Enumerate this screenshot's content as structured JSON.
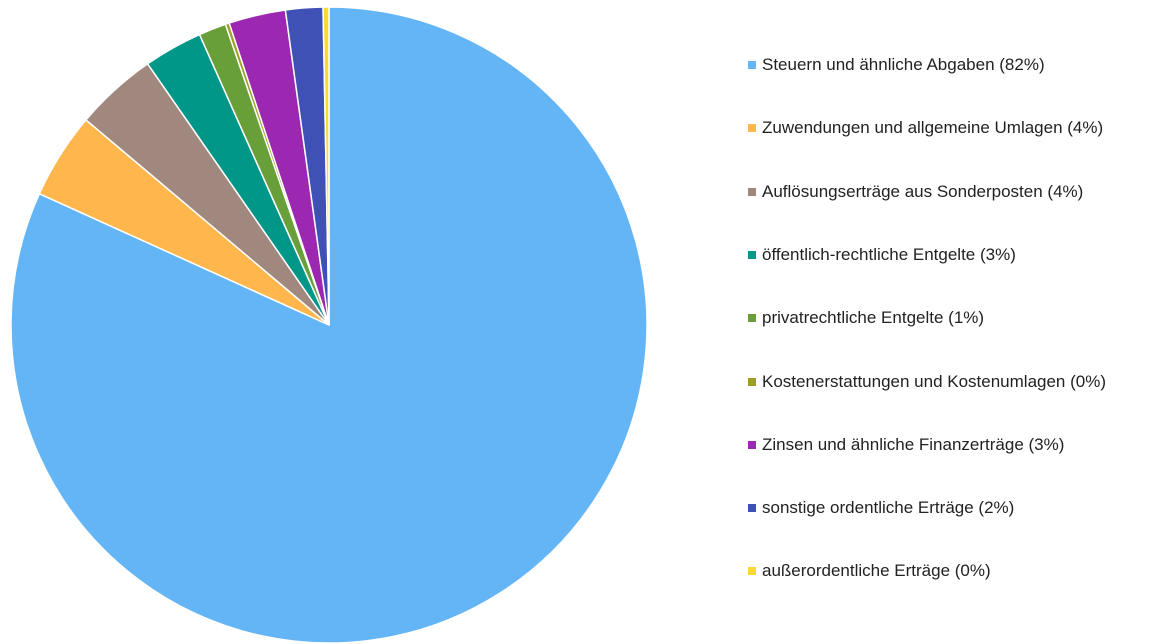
{
  "chart_data": {
    "type": "pie",
    "categories": [
      "Steuern und ähnliche Abgaben (82%)",
      "Zuwendungen und allgemeine Umlagen (4%)",
      "Auflösungserträge aus Sonderposten (4%)",
      "öffentlich-rechtliche Entgelte (3%)",
      "privatrechtliche Entgelte (1%)",
      "Kostenerstattungen und Kostenumlagen (0%)",
      "Zinsen und ähnliche Finanzerträge (3%)",
      "sonstige ordentliche Erträge (2%)",
      "außerordentliche Erträge (0%)"
    ],
    "values": [
      82.1,
      4.4,
      4.2,
      3.0,
      1.4,
      0.2,
      2.9,
      1.9,
      0.3
    ],
    "colors": [
      "#64b5f6",
      "#ffb74d",
      "#a1887f",
      "#009688",
      "#689f38",
      "#9e9d24",
      "#9c27b0",
      "#3f51b5",
      "#fdd835"
    ],
    "legend": "right"
  }
}
